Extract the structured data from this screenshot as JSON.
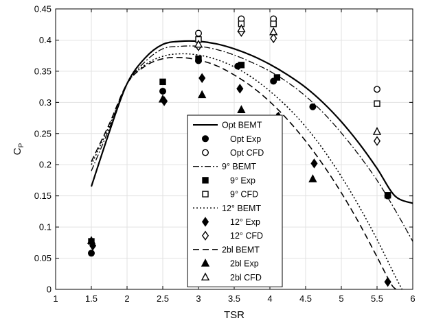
{
  "chart_data": {
    "type": "line",
    "xlabel": "TSR",
    "ylabel": "C",
    "ylabel_subscript": "P",
    "xlim": [
      1,
      6
    ],
    "ylim": [
      0,
      0.45
    ],
    "xticks": [
      "1",
      "1.5",
      "2",
      "2.5",
      "3",
      "3.5",
      "4",
      "4.5",
      "5",
      "5.5",
      "6"
    ],
    "yticks": [
      "0",
      "0.05",
      "0.1",
      "0.15",
      "0.2",
      "0.25",
      "0.3",
      "0.35",
      "0.4",
      "0.45"
    ],
    "grid": true,
    "legend_position": "center-bottom",
    "series": [
      {
        "name": "Opt BEMT",
        "style": "line",
        "dash": "solid",
        "width": 2.2,
        "x": [
          1.5,
          1.75,
          2.0,
          2.25,
          2.5,
          2.75,
          3.0,
          3.25,
          3.5,
          3.75,
          4.0,
          4.25,
          4.5,
          4.75,
          5.0,
          5.25,
          5.5,
          5.75,
          6.0
        ],
        "y": [
          0.165,
          0.252,
          0.33,
          0.371,
          0.393,
          0.398,
          0.398,
          0.394,
          0.386,
          0.375,
          0.361,
          0.344,
          0.324,
          0.299,
          0.269,
          0.234,
          0.194,
          0.15,
          0.138
        ]
      },
      {
        "name": "Opt Exp",
        "style": "marker",
        "marker": "circle",
        "filled": true,
        "x": [
          1.5,
          2.5,
          3.0,
          3.55,
          4.05,
          4.6,
          5.65
        ],
        "y": [
          0.058,
          0.318,
          0.367,
          0.358,
          0.334,
          0.293,
          0.15
        ]
      },
      {
        "name": "Opt CFD",
        "style": "marker",
        "marker": "circle",
        "filled": false,
        "x": [
          3.0,
          3.6,
          4.05,
          5.5
        ],
        "y": [
          0.411,
          0.434,
          0.434,
          0.321
        ]
      },
      {
        "name": "9° BEMT",
        "style": "line",
        "dash": "dashdot",
        "width": 1.3,
        "x": [
          1.5,
          1.75,
          2.0,
          2.25,
          2.5,
          2.75,
          3.0,
          3.25,
          3.5,
          3.75,
          4.0,
          4.25,
          4.5,
          4.75,
          5.0,
          5.25,
          5.5,
          5.75,
          6.0
        ],
        "y": [
          0.19,
          0.258,
          0.33,
          0.365,
          0.386,
          0.39,
          0.39,
          0.385,
          0.376,
          0.364,
          0.35,
          0.332,
          0.31,
          0.283,
          0.251,
          0.215,
          0.175,
          0.128,
          0.077
        ]
      },
      {
        "name": "9° Exp",
        "style": "marker",
        "marker": "square",
        "filled": true,
        "x": [
          1.5,
          2.5,
          3.0,
          3.6,
          4.1,
          5.65
        ],
        "y": [
          0.077,
          0.333,
          0.37,
          0.36,
          0.34,
          0.151
        ]
      },
      {
        "name": "9° CFD",
        "style": "marker",
        "marker": "square",
        "filled": false,
        "x": [
          3.0,
          3.6,
          4.05,
          5.5
        ],
        "y": [
          0.401,
          0.426,
          0.426,
          0.298
        ]
      },
      {
        "name": "12° BEMT",
        "style": "line",
        "dash": "dotted",
        "width": 1.6,
        "x": [
          1.5,
          1.75,
          2.0,
          2.25,
          2.5,
          2.75,
          3.0,
          3.25,
          3.5,
          3.75,
          4.0,
          4.25,
          4.5,
          4.75,
          5.0,
          5.25,
          5.5,
          5.75,
          5.85
        ],
        "y": [
          0.2,
          0.262,
          0.33,
          0.36,
          0.374,
          0.378,
          0.376,
          0.369,
          0.357,
          0.34,
          0.318,
          0.292,
          0.261,
          0.224,
          0.181,
          0.133,
          0.08,
          0.022,
          0.0
        ]
      },
      {
        "name": "12° Exp",
        "style": "marker",
        "marker": "diamond",
        "filled": true,
        "x": [
          1.52,
          2.52,
          3.05,
          3.58,
          4.12,
          4.62,
          5.65
        ],
        "y": [
          0.07,
          0.302,
          0.339,
          0.322,
          0.277,
          0.202,
          0.012
        ]
      },
      {
        "name": "12° CFD",
        "style": "marker",
        "marker": "diamond",
        "filled": false,
        "x": [
          3.0,
          3.6,
          4.05,
          5.5
        ],
        "y": [
          0.39,
          0.413,
          0.403,
          0.238
        ]
      },
      {
        "name": "2bl BEMT",
        "style": "line",
        "dash": "dashed",
        "width": 1.6,
        "x": [
          1.5,
          1.75,
          2.0,
          2.25,
          2.5,
          2.75,
          3.0,
          3.25,
          3.5,
          3.75,
          4.0,
          4.25,
          4.5,
          4.75,
          5.0,
          5.25,
          5.5,
          5.7,
          5.78
        ],
        "y": [
          0.205,
          0.265,
          0.33,
          0.358,
          0.37,
          0.372,
          0.368,
          0.359,
          0.344,
          0.325,
          0.301,
          0.272,
          0.238,
          0.199,
          0.155,
          0.106,
          0.052,
          0.008,
          0.0
        ]
      },
      {
        "name": "2bl Exp",
        "style": "marker",
        "marker": "triangle",
        "filled": true,
        "x": [
          1.5,
          2.5,
          3.05,
          3.6,
          4.1,
          4.6
        ],
        "y": [
          0.078,
          0.305,
          0.312,
          0.288,
          0.276,
          0.177
        ]
      },
      {
        "name": "2bl CFD",
        "style": "marker",
        "marker": "triangle",
        "filled": false,
        "x": [
          3.0,
          3.6,
          4.05,
          5.5
        ],
        "y": [
          0.393,
          0.418,
          0.413,
          0.253
        ]
      }
    ]
  }
}
